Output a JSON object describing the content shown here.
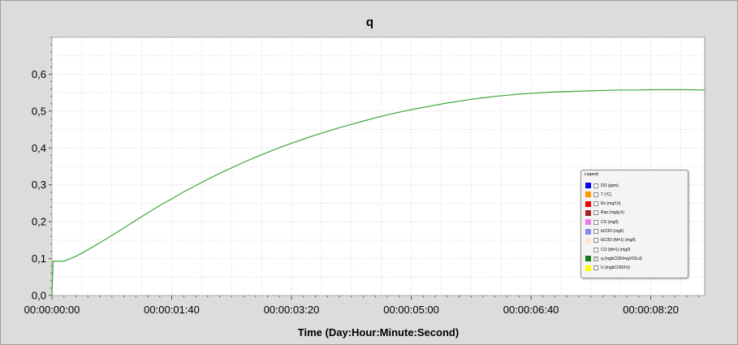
{
  "chart_data": {
    "type": "line",
    "title": "q",
    "xlabel": "Time (Day:Hour:Minute:Second)",
    "ylabel": "",
    "x_unit": "seconds",
    "xlim": [
      0,
      545
    ],
    "ylim": [
      0,
      0.7
    ],
    "x_ticks": [
      {
        "value": 0,
        "label": "00:00:00:00"
      },
      {
        "value": 100,
        "label": "00:00:01:40"
      },
      {
        "value": 200,
        "label": "00:00:03:20"
      },
      {
        "value": 300,
        "label": "00:00:05:00"
      },
      {
        "value": 400,
        "label": "00:00:06:40"
      },
      {
        "value": 500,
        "label": "00:00:08:20"
      }
    ],
    "y_ticks": [
      {
        "value": 0,
        "label": "0,0"
      },
      {
        "value": 0.1,
        "label": "0,1"
      },
      {
        "value": 0.2,
        "label": "0,2"
      },
      {
        "value": 0.3,
        "label": "0,3"
      },
      {
        "value": 0.4,
        "label": "0,4"
      },
      {
        "value": 0.5,
        "label": "0,5"
      },
      {
        "value": 0.6,
        "label": "0,6"
      }
    ],
    "grid": true,
    "legend_position": "bottom-right",
    "series": [
      {
        "name": "q (mgbCOD/mgVSS.d)",
        "color": "#3aa63a",
        "x": [
          0,
          1,
          2,
          10,
          20,
          30,
          40,
          50,
          60,
          70,
          80,
          90,
          100,
          110,
          120,
          130,
          140,
          150,
          160,
          170,
          180,
          190,
          200,
          210,
          220,
          230,
          240,
          250,
          260,
          270,
          280,
          290,
          300,
          310,
          320,
          330,
          340,
          350,
          360,
          370,
          380,
          390,
          400,
          410,
          420,
          430,
          440,
          450,
          460,
          470,
          480,
          490,
          500,
          510,
          520,
          530,
          545
        ],
        "y": [
          0.0,
          0.093,
          0.093,
          0.093,
          0.106,
          0.124,
          0.143,
          0.163,
          0.183,
          0.204,
          0.224,
          0.244,
          0.262,
          0.281,
          0.298,
          0.315,
          0.331,
          0.346,
          0.361,
          0.375,
          0.388,
          0.401,
          0.413,
          0.424,
          0.435,
          0.445,
          0.455,
          0.464,
          0.473,
          0.482,
          0.49,
          0.497,
          0.504,
          0.51,
          0.516,
          0.522,
          0.527,
          0.532,
          0.536,
          0.54,
          0.543,
          0.546,
          0.548,
          0.55,
          0.552,
          0.553,
          0.554,
          0.555,
          0.556,
          0.557,
          0.557,
          0.557,
          0.558,
          0.558,
          0.558,
          0.558,
          0.557
        ]
      }
    ]
  },
  "legend": {
    "title": "Legend",
    "items": [
      {
        "label": "DO (ppm)",
        "color": "#0000ee",
        "checked": false
      },
      {
        "label": "T (ºC)",
        "color": "#ff9900",
        "checked": false
      },
      {
        "label": "Rs (mg/l.h)",
        "color": "#ee0000",
        "checked": false
      },
      {
        "label": "Rsp (mg/g.h)",
        "color": "#aa2222",
        "checked": false
      },
      {
        "label": "CO (mg/l)",
        "color": "#ee77ee",
        "checked": false
      },
      {
        "label": "bCOD (mg/l)",
        "color": "#8888ee",
        "checked": false
      },
      {
        "label": "bCOD (fd=1) (mg/l)",
        "color": "#ffe6cc",
        "checked": false
      },
      {
        "label": "CO (fd=1) (mg/l)",
        "color": "#f4f4f4",
        "checked": false
      },
      {
        "label": "q (mgbCOD/mgVSS.d)",
        "color": "#1a7a1a",
        "checked": true
      },
      {
        "label": "U (mgbCOD/l.h)",
        "color": "#ffff00",
        "checked": false
      }
    ]
  }
}
